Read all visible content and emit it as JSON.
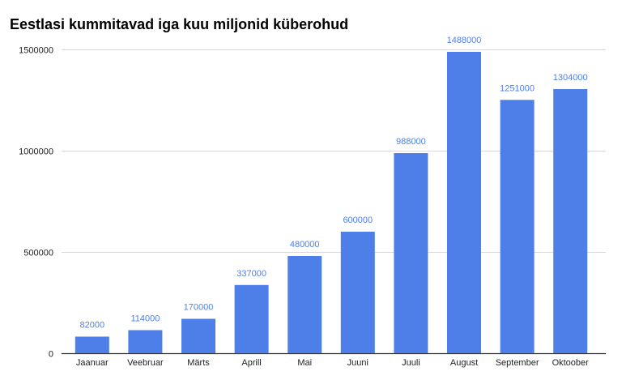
{
  "chart_data": {
    "type": "bar",
    "title": "Eestlasi kummitavad iga kuu miljonid küberohud",
    "categories": [
      "Jaanuar",
      "Veebruar",
      "Märts",
      "Aprill",
      "Mai",
      "Juuni",
      "Juuli",
      "August",
      "September",
      "Oktoober"
    ],
    "values": [
      82000,
      114000,
      170000,
      337000,
      480000,
      600000,
      988000,
      1488000,
      1251000,
      1304000
    ],
    "data_labels": [
      "82000",
      "114000",
      "170000",
      "337000",
      "480000",
      "600000",
      "988000",
      "1488000",
      "1251000",
      "1304000"
    ],
    "y_ticks": [
      0,
      500000,
      1000000,
      1500000
    ],
    "y_tick_labels": [
      "0",
      "500000",
      "1000000",
      "1500000"
    ],
    "ylim": [
      0,
      1500000
    ],
    "xlabel": "",
    "ylabel": "",
    "grid": true,
    "legend": "none",
    "colors": {
      "bar": "#4e7fe8",
      "data_label": "#4e7fe8",
      "grid": "#d9d9d9",
      "axis": "#333333"
    }
  }
}
